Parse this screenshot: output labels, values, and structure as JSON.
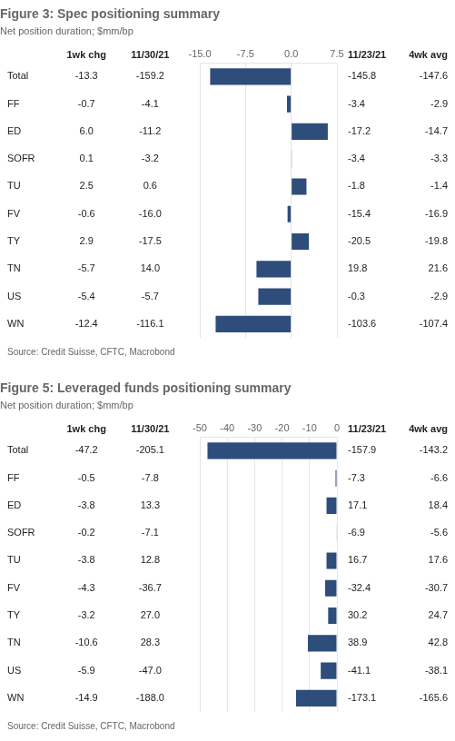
{
  "chart_data": [
    {
      "type": "bar",
      "orientation": "horizontal",
      "title": "Figure 3: Spec positioning summary",
      "subtitle": "Net position duration; $mm/bp",
      "source": "Source: Credit Suisse, CFTC, Macrobond",
      "categories": [
        "Total",
        "FF",
        "ED",
        "SOFR",
        "TU",
        "FV",
        "TY",
        "TN",
        "US",
        "WN"
      ],
      "values": [
        -13.3,
        -0.7,
        6,
        0.1,
        2.5,
        -0.6,
        2.9,
        -5.7,
        -5.4,
        -12.4
      ],
      "color": "#2e4d7b",
      "xlim": [
        -15,
        7.5
      ],
      "xticks": [
        {
          "value": -15,
          "label": "-15.0"
        },
        -7.5,
        {
          "value": 0,
          "label": "0.0"
        },
        7.5
      ],
      "grid": true,
      "table": {
        "columns": [
          {
            "name": "1wk chg",
            "values": [
              -13.3,
              -0.7,
              6,
              0.1,
              2.5,
              -0.6,
              2.9,
              -5.7,
              -5.4,
              -12.4
            ],
            "value_labels": [
              "-13.3",
              "-0.7",
              "6.0",
              "0.1",
              "2.5",
              "-0.6",
              "2.9",
              "-5.7",
              "-5.4",
              "-12.4"
            ]
          },
          {
            "name": "11/30/21",
            "values": [
              -159.2,
              -4.1,
              -11.2,
              -3.2,
              0.6,
              -16,
              -17.5,
              14,
              -5.7,
              -116.1
            ],
            "value_labels": [
              "-159.2",
              "-4.1",
              "-11.2",
              "-3.2",
              "0.6",
              "-16.0",
              "-17.5",
              "14.0",
              "-5.7",
              "-116.1"
            ]
          },
          {
            "name": "11/23/21",
            "values": [
              -145.8,
              -3.4,
              -17.2,
              -3.4,
              -1.8,
              -15.4,
              -20.5,
              19.8,
              -0.3,
              -103.6
            ],
            "value_labels": [
              "-145.8",
              "-3.4",
              "-17.2",
              "-3.4",
              "-1.8",
              "-15.4",
              "-20.5",
              "19.8",
              "-0.3",
              "-103.6"
            ]
          },
          {
            "name": "4wk avg",
            "values": [
              -147.6,
              -2.9,
              -14.7,
              -3.3,
              -1.4,
              -16.9,
              -19.8,
              21.6,
              -2.9,
              -107.4
            ],
            "value_labels": [
              "-147.6",
              "-2.9",
              "-14.7",
              "-3.3",
              "-1.4",
              "-16.9",
              "-19.8",
              "21.6",
              "-2.9",
              "-107.4"
            ]
          }
        ]
      }
    },
    {
      "type": "bar",
      "orientation": "horizontal",
      "title": "Figure 5: Leveraged funds positioning summary",
      "subtitle": "Net position duration; $mm/bp",
      "source": "Source: Credit Suisse, CFTC, Macrobond",
      "categories": [
        "Total",
        "FF",
        "ED",
        "SOFR",
        "TU",
        "FV",
        "TY",
        "TN",
        "US",
        "WN"
      ],
      "values": [
        -47.2,
        -0.5,
        -3.8,
        -0.2,
        -3.8,
        -4.3,
        -3.2,
        -10.6,
        -5.9,
        -14.9
      ],
      "color": "#2e4d7b",
      "xlim": [
        -50,
        0
      ],
      "xticks": [
        -50,
        -40,
        -30,
        -20,
        -10,
        0
      ],
      "grid": true,
      "table": {
        "columns": [
          {
            "name": "1wk chg",
            "values": [
              -47.2,
              -0.5,
              -3.8,
              -0.2,
              -3.8,
              -4.3,
              -3.2,
              -10.6,
              -5.9,
              -14.9
            ],
            "value_labels": [
              "-47.2",
              "-0.5",
              "-3.8",
              "-0.2",
              "-3.8",
              "-4.3",
              "-3.2",
              "-10.6",
              "-5.9",
              "-14.9"
            ]
          },
          {
            "name": "11/30/21",
            "values": [
              -205.1,
              -7.8,
              13.3,
              -7.1,
              12.8,
              -36.7,
              27,
              28.3,
              -47,
              -188
            ],
            "value_labels": [
              "-205.1",
              "-7.8",
              "13.3",
              "-7.1",
              "12.8",
              "-36.7",
              "27.0",
              "28.3",
              "-47.0",
              "-188.0"
            ]
          },
          {
            "name": "11/23/21",
            "values": [
              -157.9,
              -7.3,
              17.1,
              -6.9,
              16.7,
              -32.4,
              30.2,
              38.9,
              -41.1,
              -173.1
            ],
            "value_labels": [
              "-157.9",
              "-7.3",
              "17.1",
              "-6.9",
              "16.7",
              "-32.4",
              "30.2",
              "38.9",
              "-41.1",
              "-173.1"
            ]
          },
          {
            "name": "4wk avg",
            "values": [
              -143.2,
              -6.6,
              18.4,
              -5.6,
              17.6,
              -30.7,
              24.7,
              42.8,
              -38.1,
              -165.6
            ],
            "value_labels": [
              "-143.2",
              "-6.6",
              "18.4",
              "-5.6",
              "17.6",
              "-30.7",
              "24.7",
              "42.8",
              "-38.1",
              "-165.6"
            ]
          }
        ]
      }
    }
  ]
}
